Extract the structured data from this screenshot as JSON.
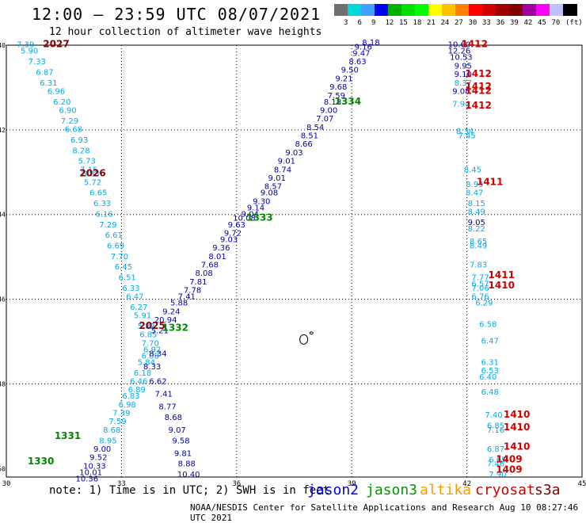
{
  "title": "12:00 – 23:59 UTC 08/07/2021",
  "subtitle": "12 hour collection of altimeter wave heights",
  "colorbar": {
    "colors": [
      "#707070",
      "#00d8d8",
      "#40a0ff",
      "#0000ff",
      "#00b000",
      "#00e000",
      "#00ff00",
      "#ffff00",
      "#ffc000",
      "#ff8000",
      "#ff0000",
      "#d00000",
      "#a00000",
      "#800000",
      "#a000a0",
      "#ff00ff",
      "#c0c0ff",
      "#000000"
    ],
    "labels": [
      "3",
      "6",
      "9",
      "12",
      "15",
      "18",
      "21",
      "24",
      "27",
      "30",
      "33",
      "36",
      "39",
      "42",
      "45",
      "70",
      "(ft)"
    ]
  },
  "axes": {
    "x_ticks": [
      "30",
      "33",
      "36",
      "39",
      "42",
      "45"
    ],
    "y_ticks": [
      "-40",
      "-42",
      "-44",
      "-46",
      "-48",
      "-50"
    ]
  },
  "series_colors": {
    "jason2": "#0000aa",
    "jason3": "#008800",
    "altika": "#ff9900",
    "cryosat": "#cc0000",
    "s3a": "#880000",
    "cyan": "#00aaee"
  },
  "passes": [
    {
      "label": "2027",
      "color": "#880000",
      "lon": 31.3,
      "lat": -40.05
    },
    {
      "label": "2026",
      "color": "#880000",
      "lon": 32.25,
      "lat": -43.1
    },
    {
      "label": "2025",
      "color": "#880000",
      "lon": 33.8,
      "lat": -46.7
    },
    {
      "label": "1334",
      "color": "#008800",
      "lon": 38.9,
      "lat": -41.4
    },
    {
      "label": "1333",
      "color": "#008800",
      "lon": 36.6,
      "lat": -44.15
    },
    {
      "label": "1332",
      "color": "#008800",
      "lon": 34.4,
      "lat": -46.75
    },
    {
      "label": "1331",
      "color": "#008800",
      "lon": 31.6,
      "lat": -49.3
    },
    {
      "label": "1330",
      "color": "#008800",
      "lon": 30.9,
      "lat": -49.9
    },
    {
      "label": "1412",
      "color": "#cc0000",
      "lon": 42.2,
      "lat": -40.05
    },
    {
      "label": "1412",
      "color": "#cc0000",
      "lon": 42.3,
      "lat": -40.75
    },
    {
      "label": "1412",
      "color": "#cc0000",
      "lon": 42.3,
      "lat": -41.05
    },
    {
      "label": "1412",
      "color": "#cc0000",
      "lon": 42.3,
      "lat": -41.15
    },
    {
      "label": "1412",
      "color": "#cc0000",
      "lon": 42.3,
      "lat": -41.5
    },
    {
      "label": "1411",
      "color": "#cc0000",
      "lon": 42.6,
      "lat": -43.3
    },
    {
      "label": "1411",
      "color": "#cc0000",
      "lon": 42.9,
      "lat": -45.5
    },
    {
      "label": "1410",
      "color": "#cc0000",
      "lon": 42.9,
      "lat": -45.75
    },
    {
      "label": "1410",
      "color": "#cc0000",
      "lon": 43.3,
      "lat": -48.8
    },
    {
      "label": "1410",
      "color": "#cc0000",
      "lon": 43.3,
      "lat": -49.1
    },
    {
      "label": "1410",
      "color": "#cc0000",
      "lon": 43.3,
      "lat": -49.55
    },
    {
      "label": "1409",
      "color": "#cc0000",
      "lon": 43.1,
      "lat": -49.85
    },
    {
      "label": "1409",
      "color": "#cc0000",
      "lon": 43.1,
      "lat": -50.1
    }
  ],
  "tracks": [
    {
      "name": "s3a-descending",
      "color": "#00aaee",
      "points": [
        [
          "7.39",
          30.5,
          -40.05
        ],
        [
          "5.90",
          30.6,
          -40.2
        ],
        [
          "7.33",
          30.8,
          -40.45
        ],
        [
          "6.87",
          31.0,
          -40.7
        ],
        [
          "6.31",
          31.1,
          -40.95
        ],
        [
          "6.96",
          31.3,
          -41.15
        ],
        [
          "6.20",
          31.45,
          -41.4
        ],
        [
          "6.90",
          31.6,
          -41.6
        ],
        [
          "7.29",
          31.65,
          -41.85
        ],
        [
          "6.68",
          31.75,
          -42.05
        ],
        [
          "6.93",
          31.9,
          -42.3
        ],
        [
          "8.28",
          31.95,
          -42.55
        ],
        [
          "5.73",
          32.1,
          -42.8
        ],
        [
          "7.15",
          32.15,
          -43.0
        ],
        [
          "6.83",
          32.2,
          -43.1
        ],
        [
          "5.72",
          32.25,
          -43.3
        ],
        [
          "6.65",
          32.4,
          -43.55
        ],
        [
          "6.33",
          32.5,
          -43.8
        ],
        [
          "6.16",
          32.55,
          -44.05
        ],
        [
          "7.29",
          32.65,
          -44.3
        ],
        [
          "6.61",
          32.8,
          -44.55
        ],
        [
          "6.69",
          32.85,
          -44.8
        ],
        [
          "7.70",
          32.95,
          -45.05
        ],
        [
          "6.45",
          33.05,
          -45.3
        ],
        [
          "6.51",
          33.15,
          -45.55
        ],
        [
          "6.33",
          33.25,
          -45.8
        ],
        [
          "6.47",
          33.35,
          -46.0
        ],
        [
          "6.27",
          33.45,
          -46.25
        ],
        [
          "5.91",
          33.55,
          -46.45
        ],
        [
          "5.82",
          33.65,
          -46.7
        ],
        [
          "6.85",
          33.7,
          -46.9
        ],
        [
          "7.70",
          33.75,
          -47.1
        ],
        [
          "6.92",
          33.8,
          -47.25
        ],
        [
          "6.08",
          33.75,
          -47.4
        ],
        [
          "5.84",
          33.65,
          -47.55
        ],
        [
          "6.18",
          33.55,
          -47.8
        ],
        [
          "6.46",
          33.45,
          -48.0
        ],
        [
          "6.89",
          33.4,
          -48.2
        ],
        [
          "6.83",
          33.25,
          -48.35
        ],
        [
          "6.98",
          33.15,
          -48.55
        ],
        [
          "7.39",
          33.0,
          -48.75
        ],
        [
          "7.59",
          32.9,
          -48.95
        ],
        [
          "8.68",
          32.75,
          -49.15
        ],
        [
          "8.95",
          32.65,
          -49.4
        ],
        [
          "9.00",
          32.5,
          -49.6
        ],
        [
          "9.52",
          32.4,
          -49.8
        ],
        [
          "10.33",
          32.3,
          -50.0
        ],
        [
          "10.01",
          32.2,
          -50.15
        ],
        [
          "10.36",
          32.1,
          -50.3
        ]
      ]
    },
    {
      "name": "jason2-ascending",
      "color": "#0000aa",
      "points": [
        [
          "8.18",
          39.5,
          -40.0
        ],
        [
          "9.16",
          39.3,
          -40.1
        ],
        [
          "9.47",
          39.25,
          -40.25
        ],
        [
          "8.63",
          39.15,
          -40.45
        ],
        [
          "9.50",
          38.95,
          -40.65
        ],
        [
          "9.21",
          38.8,
          -40.85
        ],
        [
          "9.68",
          38.65,
          -41.05
        ],
        [
          "7.59",
          38.6,
          -41.25
        ],
        [
          "8.18",
          38.5,
          -41.4
        ],
        [
          "9.00",
          38.4,
          -41.6
        ],
        [
          "7.07",
          38.3,
          -41.8
        ],
        [
          "8.54",
          38.05,
          -42.0
        ],
        [
          "8.51",
          37.9,
          -42.2
        ],
        [
          "8.66",
          37.75,
          -42.4
        ],
        [
          "9.03",
          37.5,
          -42.6
        ],
        [
          "9.01",
          37.3,
          -42.8
        ],
        [
          "8.74",
          37.2,
          -43.0
        ],
        [
          "9.01",
          37.05,
          -43.2
        ],
        [
          "8.57",
          36.95,
          -43.4
        ],
        [
          "9.08",
          36.85,
          -43.55
        ],
        [
          "9.30",
          36.65,
          -43.75
        ],
        [
          "9.14",
          36.5,
          -43.9
        ],
        [
          "9.04",
          36.35,
          -44.05
        ],
        [
          "10.08",
          36.2,
          -44.15
        ],
        [
          "9.63",
          36.0,
          -44.3
        ],
        [
          "9.72",
          35.9,
          -44.5
        ],
        [
          "9.03",
          35.8,
          -44.65
        ],
        [
          "9.36",
          35.6,
          -44.85
        ],
        [
          "8.01",
          35.5,
          -45.05
        ],
        [
          "7.68",
          35.3,
          -45.25
        ],
        [
          "8.08",
          35.15,
          -45.45
        ],
        [
          "7.81",
          35.0,
          -45.65
        ],
        [
          "7.78",
          34.85,
          -45.85
        ],
        [
          "7.41",
          34.7,
          -46.0
        ],
        [
          "5.88",
          34.5,
          -46.15
        ],
        [
          "9.24",
          34.3,
          -46.35
        ],
        [
          "20.94",
          34.15,
          -46.55
        ],
        [
          "5.21",
          34.0,
          -46.8
        ],
        [
          "8.34",
          33.95,
          -47.35
        ],
        [
          "8.33",
          33.8,
          -47.65
        ],
        [
          "6.62",
          33.95,
          -48.0
        ],
        [
          "7.41",
          34.1,
          -48.3
        ],
        [
          "8.77",
          34.2,
          -48.6
        ],
        [
          "8.68",
          34.35,
          -48.85
        ],
        [
          "9.07",
          34.45,
          -49.15
        ],
        [
          "9.58",
          34.55,
          -49.4
        ],
        [
          "9.81",
          34.6,
          -49.7
        ],
        [
          "8.88",
          34.7,
          -49.95
        ],
        [
          "10.40",
          34.75,
          -50.2
        ]
      ]
    },
    {
      "name": "cryosat-descending",
      "color": "#00aaee",
      "points": [
        [
          "10.60",
          41.8,
          -40.05
        ],
        [
          "12.26",
          41.8,
          -40.2
        ],
        [
          "10.53",
          41.85,
          -40.35
        ],
        [
          "9.95",
          41.9,
          -40.55
        ],
        [
          "9.10",
          41.9,
          -40.75
        ],
        [
          "8.37",
          41.9,
          -40.95
        ],
        [
          "9.08",
          41.85,
          -41.15
        ],
        [
          "7.94",
          41.85,
          -41.45
        ],
        [
          "8.34",
          41.95,
          -42.1
        ],
        [
          "7.45",
          42.0,
          -42.2
        ],
        [
          "8.45",
          42.15,
          -43.0
        ],
        [
          "8.93",
          42.2,
          -43.35
        ],
        [
          "8.47",
          42.2,
          -43.55
        ],
        [
          "8.15",
          42.25,
          -43.8
        ],
        [
          "8.49",
          42.25,
          -44.0
        ],
        [
          "9.05",
          42.25,
          -44.25
        ],
        [
          "8.22",
          42.25,
          -44.4
        ],
        [
          "8.65",
          42.3,
          -44.7
        ],
        [
          "8.49",
          42.3,
          -44.8
        ],
        [
          "7.83",
          42.3,
          -45.25
        ],
        [
          "7.77",
          42.35,
          -45.55
        ],
        [
          "6.57",
          42.35,
          -45.7
        ],
        [
          "7.06",
          42.35,
          -45.8
        ],
        [
          "6.76",
          42.35,
          -46.0
        ],
        [
          "6.29",
          42.45,
          -46.15
        ],
        [
          "6.58",
          42.55,
          -46.65
        ],
        [
          "6.47",
          42.6,
          -47.05
        ],
        [
          "6.31",
          42.6,
          -47.55
        ],
        [
          "6.53",
          42.6,
          -47.75
        ],
        [
          "6.40",
          42.55,
          -47.9
        ],
        [
          "6.48",
          42.6,
          -48.25
        ],
        [
          "7.40",
          42.7,
          -48.8
        ],
        [
          "6.85",
          42.75,
          -49.05
        ],
        [
          "7.16",
          42.75,
          -49.15
        ],
        [
          "6.87",
          42.75,
          -49.6
        ],
        [
          "6.65",
          42.8,
          -49.85
        ],
        [
          "7.46",
          42.75,
          -49.95
        ],
        [
          "7.90",
          42.8,
          -50.2
        ]
      ]
    }
  ]
}
